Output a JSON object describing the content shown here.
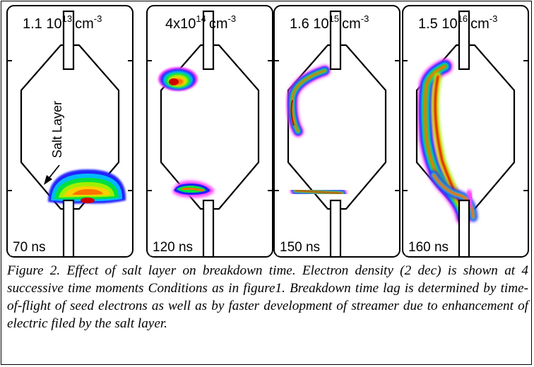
{
  "figure": {
    "panels": [
      {
        "density_mantissa": "1.1 10",
        "density_exponent": "13",
        "density_unit": "cm",
        "unit_exponent": "-3",
        "time": "70 ns"
      },
      {
        "density_mantissa": "4x10",
        "density_exponent": "14",
        "density_unit": "cm",
        "unit_exponent": "-3",
        "time": "120 ns"
      },
      {
        "density_mantissa": "1.6 10",
        "density_exponent": "15",
        "density_unit": "cm",
        "unit_exponent": "-3",
        "time": "150 ns"
      },
      {
        "density_mantissa": "1.5 10",
        "density_exponent": "16",
        "density_unit": "cm",
        "unit_exponent": "-3",
        "time": "160 ns"
      }
    ],
    "salt_layer_label": "Salt Layer",
    "colormap": [
      "#ff40ff",
      "#2020ff",
      "#00b8ff",
      "#00e040",
      "#a0f000",
      "#ffd000",
      "#ff7000",
      "#d00000"
    ]
  },
  "caption": "Figure 2. Effect of  salt layer on breakdown time. Electron density (2 dec) is shown at 4 successive time moments Conditions as in figure1. Breakdown time lag is determined by time-of-flight of seed electrons as well as by faster development of streamer due to enhancement of electric filed by the salt layer."
}
